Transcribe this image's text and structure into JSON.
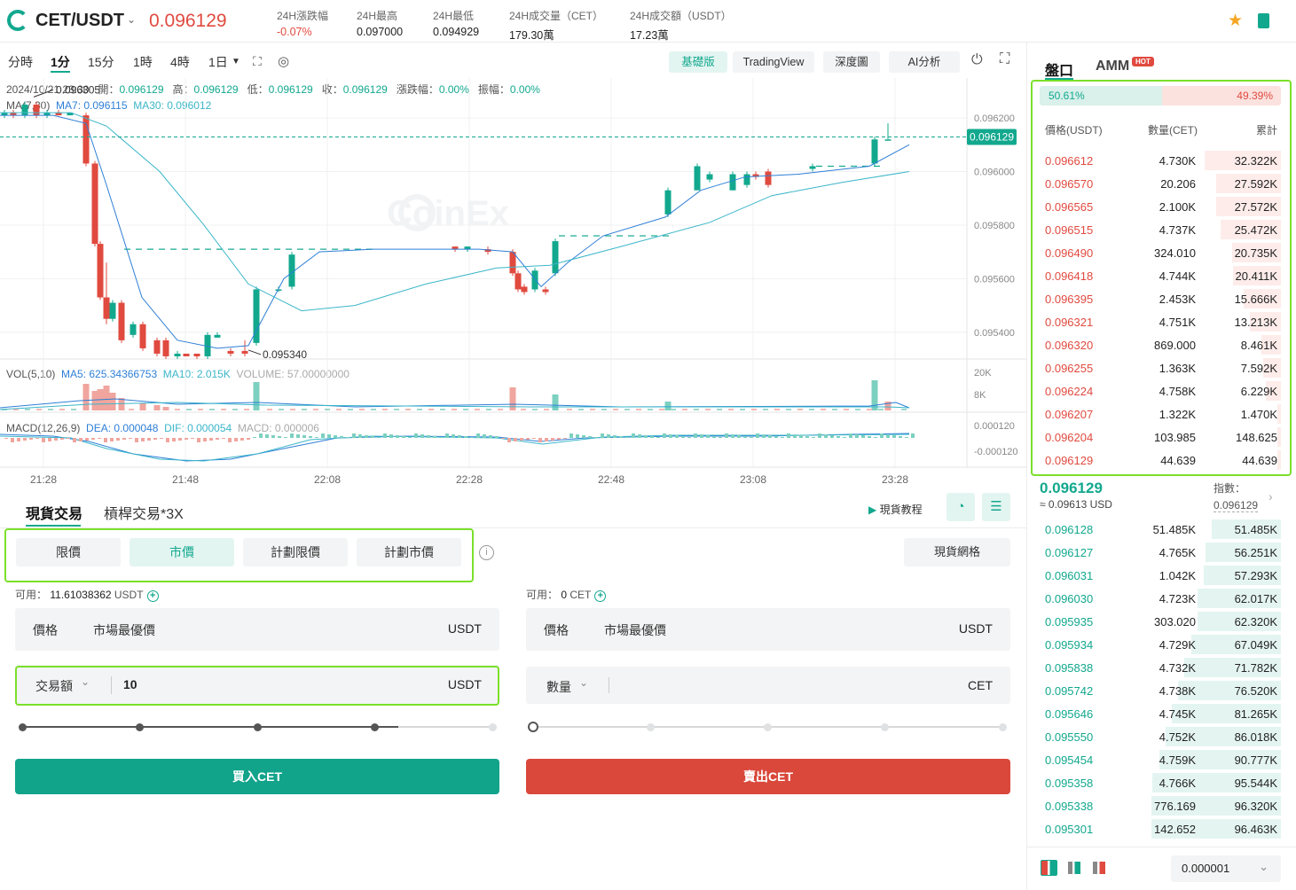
{
  "header": {
    "pair": "CET/USDT",
    "last_price": "0.096129",
    "stats": [
      {
        "label": "24H漲跌幅",
        "value": "-0.07%",
        "color": "#e04a3f"
      },
      {
        "label": "24H最高",
        "value": "0.097000"
      },
      {
        "label": "24H最低",
        "value": "0.094929"
      },
      {
        "label": "24H成交量（CET）",
        "value": "179.30萬"
      },
      {
        "label": "24H成交額（USDT）",
        "value": "17.23萬"
      }
    ],
    "icons": [
      "star-icon",
      "book-icon"
    ]
  },
  "toolbar": {
    "intervals": [
      "分時",
      "1分",
      "15分",
      "1時",
      "4時",
      "1日"
    ],
    "selected": "1分",
    "views": [
      "基礎版",
      "TradingView",
      "深度圖",
      "AI分析"
    ],
    "selected_view": "基礎版"
  },
  "chart_info": {
    "line1": {
      "date": "2024/10/21 23:30",
      "open_l": "開：",
      "open": "0.096129",
      "high_l": "高：",
      "high": "0.096129",
      "low_l": "低：",
      "low": "0.096129",
      "close_l": "收：",
      "close": "0.096129",
      "chg_l": "漲跌幅：",
      "chg": "0.00%",
      "amp_l": "振幅：",
      "amp": "0.00%"
    },
    "ma_label": "MA(7,30)",
    "ma7": "MA7: 0.096115",
    "ma30": "MA30: 0.096012",
    "high_mark": "0.096305",
    "low_mark": "0.095340",
    "watermark": "CoinEx",
    "vol_label": "VOL(5,10)",
    "ma5": "MA5: 625.34366753",
    "ma10": "MA10: 2.015K",
    "volume": "VOLUME: 57.00000000",
    "macd_label": "MACD(12,26,9)",
    "dea": "DEA: 0.000048",
    "dif": "DIF: 0.000054",
    "macd": "MACD: 0.000006",
    "price_axis": [
      "0.096200",
      "0.096000",
      "0.095800",
      "0.095600",
      "0.095400"
    ],
    "current_tag": "0.096129",
    "vol_axis": [
      "20K",
      "8K"
    ],
    "macd_axis": [
      "0.000120",
      "-0.000120"
    ],
    "time_axis": [
      "21:28",
      "21:48",
      "22:08",
      "22:28",
      "22:48",
      "23:08",
      "23:28"
    ]
  },
  "chart_data": {
    "type": "candlestick",
    "x": [
      "21:28",
      "21:48",
      "22:08",
      "22:28",
      "22:48",
      "23:08",
      "23:28"
    ],
    "ylim": [
      0.0953,
      0.09625
    ],
    "y_ticks": [
      0.0962,
      0.096,
      0.0958,
      0.0956,
      0.0954
    ],
    "series": [
      {
        "name": "MA7",
        "color": "#2e7fd6"
      },
      {
        "name": "MA30",
        "color": "#3bb6c9"
      }
    ],
    "last": 0.096129,
    "high": 0.096305,
    "low": 0.09534
  },
  "trade": {
    "tabs": [
      "現貨交易",
      "槓桿交易*3X"
    ],
    "tutorial": "現貨教程",
    "order_types": [
      "限價",
      "市價",
      "計劃限價",
      "計劃市價"
    ],
    "selected_order": "市價",
    "grid_btn": "現貨網格",
    "buy": {
      "avail_label": "可用：",
      "avail": "11.61038362",
      "avail_unit": "USDT",
      "price_label": "價格",
      "price_value": "市場最優價",
      "price_unit": "USDT",
      "amount_label": "交易額",
      "amount_value": "10",
      "amount_unit": "USDT",
      "button": "買入CET"
    },
    "sell": {
      "avail_label": "可用：",
      "avail": "0",
      "avail_unit": "CET",
      "price_label": "價格",
      "price_value": "市場最優價",
      "price_unit": "USDT",
      "amount_label": "數量",
      "amount_value": "",
      "amount_unit": "CET",
      "button": "賣出CET"
    },
    "buy_slider_fraction": 0.8,
    "sell_slider_fraction": 0
  },
  "orderbook": {
    "tabs": [
      "盤口",
      "AMM"
    ],
    "hot": "HOT",
    "buy_ratio": "50.61%",
    "sell_ratio": "49.39%",
    "buy_ratio_value": 50.61,
    "columns": [
      "價格(USDT)",
      "數量(CET)",
      "累計"
    ],
    "asks": [
      [
        "0.096612",
        "4.730K",
        "32.322K"
      ],
      [
        "0.096570",
        "20.206",
        "27.592K"
      ],
      [
        "0.096565",
        "2.100K",
        "27.572K"
      ],
      [
        "0.096515",
        "4.737K",
        "25.472K"
      ],
      [
        "0.096490",
        "324.010",
        "20.735K"
      ],
      [
        "0.096418",
        "4.744K",
        "20.411K"
      ],
      [
        "0.096395",
        "2.453K",
        "15.666K"
      ],
      [
        "0.096321",
        "4.751K",
        "13.213K"
      ],
      [
        "0.096320",
        "869.000",
        "8.461K"
      ],
      [
        "0.096255",
        "1.363K",
        "7.592K"
      ],
      [
        "0.096224",
        "4.758K",
        "6.229K"
      ],
      [
        "0.096207",
        "1.322K",
        "1.470K"
      ],
      [
        "0.096204",
        "103.985",
        "148.625"
      ],
      [
        "0.096129",
        "44.639",
        "44.639"
      ]
    ],
    "mid_price": "0.096129",
    "mid_usd": "≈ 0.09613  USD",
    "index_label": "指數：",
    "index_value": "0.096129",
    "bids": [
      [
        "0.096128",
        "51.485K",
        "51.485K"
      ],
      [
        "0.096127",
        "4.765K",
        "56.251K"
      ],
      [
        "0.096031",
        "1.042K",
        "57.293K"
      ],
      [
        "0.096030",
        "4.723K",
        "62.017K"
      ],
      [
        "0.095935",
        "303.020",
        "62.320K"
      ],
      [
        "0.095934",
        "4.729K",
        "67.049K"
      ],
      [
        "0.095838",
        "4.732K",
        "71.782K"
      ],
      [
        "0.095742",
        "4.738K",
        "76.520K"
      ],
      [
        "0.095646",
        "4.745K",
        "81.265K"
      ],
      [
        "0.095550",
        "4.752K",
        "86.018K"
      ],
      [
        "0.095454",
        "4.759K",
        "90.777K"
      ],
      [
        "0.095358",
        "4.766K",
        "95.544K"
      ],
      [
        "0.095338",
        "776.169",
        "96.320K"
      ],
      [
        "0.095301",
        "142.652",
        "96.463K"
      ]
    ],
    "precision": "0.000001"
  },
  "colors": {
    "up": "#12a88e",
    "down": "#e04a3f",
    "highlight": "#7be02a"
  }
}
